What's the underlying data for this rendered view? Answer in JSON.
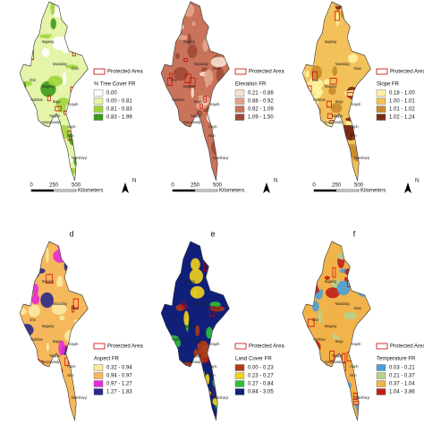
{
  "protected_area_label": "Protected Area",
  "scale_bar": {
    "ticks": [
      "0",
      "250",
      "500"
    ],
    "unit": "Kilometers"
  },
  "north": "N",
  "place_names": [
    "Sagaing",
    "Mandalay",
    "Chin",
    "Shan",
    "Magway",
    "Rakhine",
    "Bago",
    "Kayah",
    "Yangon",
    "Ayeyarwady",
    "Kayin",
    "Mon",
    "Tanintharyi"
  ],
  "panels": [
    {
      "legend_title": "% Tree Cover FR",
      "legend_items": [
        {
          "label": "0.00",
          "color": "#ffffff"
        },
        {
          "label": "0.00 - 0.81",
          "color": "#e4f4a8"
        },
        {
          "label": "0.81 - 0.83",
          "color": "#9ed43c"
        },
        {
          "label": "0.83 - 1.99",
          "color": "#3a9a1a"
        }
      ]
    },
    {
      "legend_title": "Elevation FR",
      "legend_items": [
        {
          "label": "0.21 - 0.88",
          "color": "#f7e0d0"
        },
        {
          "label": "0.88 - 0.92",
          "color": "#e3a58a"
        },
        {
          "label": "0.92 - 1.09",
          "color": "#c8735a"
        },
        {
          "label": "1.09 - 1.50",
          "color": "#a04a36"
        }
      ]
    },
    {
      "legend_title": "Slope FR",
      "legend_items": [
        {
          "label": "0.18 - 1.00",
          "color": "#fff3a0"
        },
        {
          "label": "1.00 - 1.01",
          "color": "#f3c15a"
        },
        {
          "label": "1.01 - 1.02",
          "color": "#c98a2c"
        },
        {
          "label": "1.02 - 1.24",
          "color": "#7a2a10"
        }
      ]
    },
    {
      "letter": "d",
      "legend_title": "Aspect FR",
      "legend_items": [
        {
          "label": "0.32 - 0.94",
          "color": "#fbe9a0"
        },
        {
          "label": "0.94 - 0.97",
          "color": "#f5b85c"
        },
        {
          "label": "0.97 - 1.27",
          "color": "#e62bd6"
        },
        {
          "label": "1.27 - 1.83",
          "color": "#2a2a8c"
        }
      ]
    },
    {
      "letter": "e",
      "legend_title": "Land Cover FR",
      "legend_items": [
        {
          "label": "0.00 - 0.23",
          "color": "#b33a1a"
        },
        {
          "label": "0.23 - 0.27",
          "color": "#f2d21c"
        },
        {
          "label": "0.27 - 0.84",
          "color": "#2fbf3a"
        },
        {
          "label": "0.84 - 3.05",
          "color": "#10207a"
        }
      ]
    },
    {
      "letter": "f",
      "legend_title": "Temperature FR",
      "legend_items": [
        {
          "label": "0.03 - 0.21",
          "color": "#4aa0d8"
        },
        {
          "label": "0.21 - 0.37",
          "color": "#b8d08a"
        },
        {
          "label": "0.37 - 1.04",
          "color": "#f2b24a"
        },
        {
          "label": "1.04 - 3.86",
          "color": "#c0201a"
        }
      ]
    }
  ]
}
